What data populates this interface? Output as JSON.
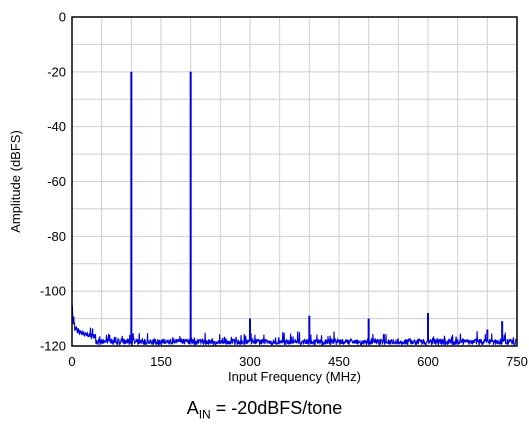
{
  "chart_data": {
    "type": "line",
    "xlabel": "Input Frequency (MHz)",
    "ylabel": "Amplitude (dBFS)",
    "xlim": [
      0,
      750
    ],
    "ylim": [
      -120,
      0
    ],
    "xticks": [
      "0",
      "150",
      "300",
      "450",
      "600",
      "750"
    ],
    "xtick_values": [
      0,
      150,
      300,
      450,
      600,
      750
    ],
    "yticks": [
      "0",
      "-20",
      "-40",
      "-60",
      "-80",
      "-100",
      "-120"
    ],
    "ytick_values": [
      0,
      -20,
      -40,
      -60,
      -80,
      -100,
      -120
    ],
    "grid": true,
    "line_color": "#0000dd",
    "noise_floor": -118,
    "spurs": [
      {
        "x": 100,
        "y": -20
      },
      {
        "x": 200,
        "y": -20
      },
      {
        "x": 300,
        "y": -110
      },
      {
        "x": 400,
        "y": -109
      },
      {
        "x": 500,
        "y": -110
      },
      {
        "x": 600,
        "y": -108
      },
      {
        "x": 700,
        "y": -114
      },
      {
        "x": 725,
        "y": -111
      }
    ],
    "low_freq_rise": [
      {
        "x": 0,
        "y": -106
      },
      {
        "x": 2,
        "y": -110
      },
      {
        "x": 5,
        "y": -113
      },
      {
        "x": 10,
        "y": -114
      },
      {
        "x": 20,
        "y": -115
      },
      {
        "x": 40,
        "y": -116
      }
    ]
  },
  "caption": {
    "prefix": "A",
    "subscript": "IN",
    "suffix": " = -20dBFS/tone"
  }
}
